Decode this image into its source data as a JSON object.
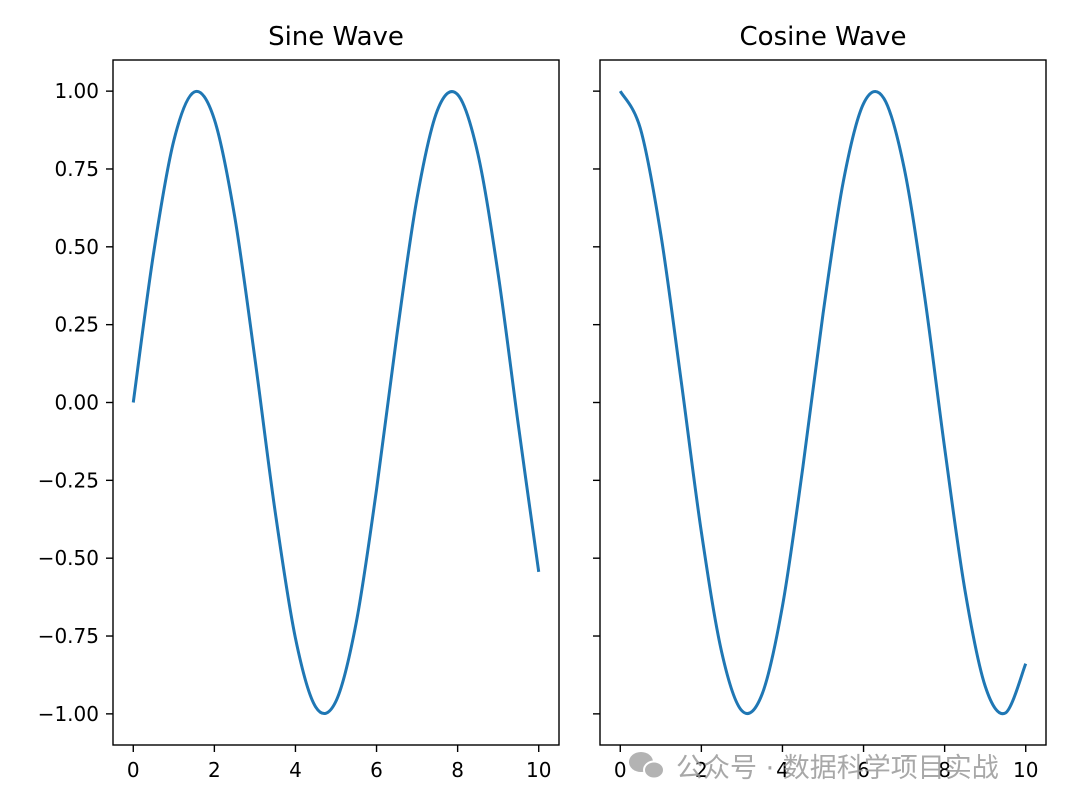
{
  "chart_data": [
    {
      "type": "line",
      "title": "Sine Wave",
      "function": "sin(x)",
      "x": [
        0,
        0.5,
        1,
        1.5,
        2,
        2.5,
        3,
        3.5,
        4,
        4.5,
        5,
        5.5,
        6,
        6.5,
        7,
        7.5,
        8,
        8.5,
        9,
        9.5,
        10
      ],
      "series": [
        {
          "values": [
            0,
            0.479,
            0.841,
            0.997,
            0.909,
            0.598,
            0.141,
            -0.351,
            -0.757,
            -0.978,
            -0.959,
            -0.706,
            -0.279,
            0.215,
            0.657,
            0.938,
            0.989,
            0.798,
            0.412,
            -0.075,
            -0.544
          ],
          "color": "#1f77b4"
        }
      ],
      "xlim": [
        -0.5,
        10.5
      ],
      "ylim": [
        -1.1,
        1.1
      ],
      "xticks": [
        "0",
        "2",
        "4",
        "6",
        "8",
        "10"
      ],
      "yticks": [
        "1.00",
        "0.75",
        "0.50",
        "0.25",
        "0.00",
        "−0.25",
        "−0.50",
        "−0.75",
        "−1.00"
      ],
      "grid": false
    },
    {
      "type": "line",
      "title": "Cosine Wave",
      "function": "cos(x)",
      "x": [
        0,
        0.5,
        1,
        1.5,
        2,
        2.5,
        3,
        3.5,
        4,
        4.5,
        5,
        5.5,
        6,
        6.5,
        7,
        7.5,
        8,
        8.5,
        9,
        9.5,
        10
      ],
      "series": [
        {
          "values": [
            1,
            0.878,
            0.54,
            0.071,
            -0.416,
            -0.801,
            -0.99,
            -0.936,
            -0.654,
            -0.211,
            0.284,
            0.709,
            0.96,
            0.977,
            0.754,
            0.347,
            -0.146,
            -0.602,
            -0.911,
            -0.997,
            -0.839
          ],
          "color": "#1f77b4"
        }
      ],
      "xlim": [
        -0.5,
        10.5
      ],
      "ylim": [
        -1.1,
        1.1
      ],
      "xticks": [
        "0",
        "2",
        "4",
        "6",
        "8",
        "10"
      ],
      "sharey": true,
      "grid": false
    }
  ],
  "watermark": {
    "text": "公众号 · 数据科学项目实战",
    "icon": "wechat-icon",
    "color": "#9a9a9a"
  }
}
